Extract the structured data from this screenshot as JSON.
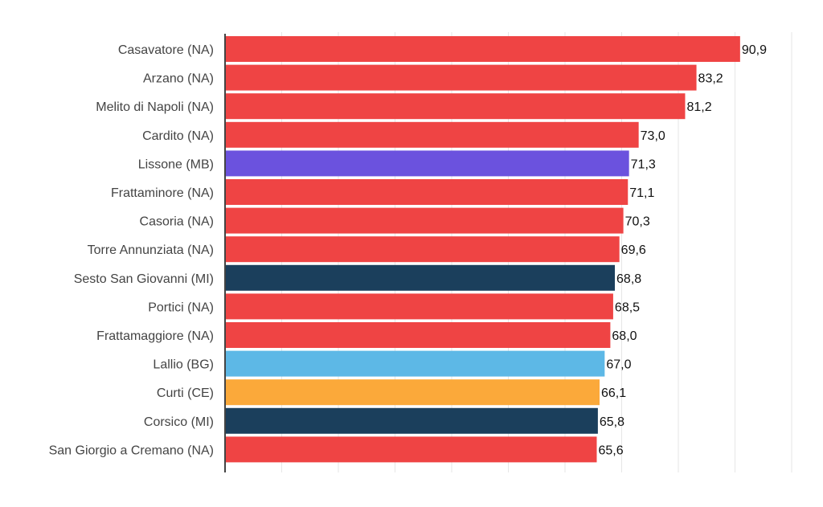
{
  "chart_data": {
    "type": "bar",
    "orientation": "horizontal",
    "categories": [
      "Casavatore (NA)",
      "Arzano (NA)",
      "Melito di Napoli (NA)",
      "Cardito (NA)",
      "Lissone (MB)",
      "Frattaminore (NA)",
      "Casoria (NA)",
      "Torre Annunziata (NA)",
      "Sesto San Giovanni (MI)",
      "Portici (NA)",
      "Frattamaggiore (NA)",
      "Lallio (BG)",
      "Curti (CE)",
      "Corsico (MI)",
      "San Giorgio a Cremano (NA)"
    ],
    "values": [
      90.9,
      83.2,
      81.2,
      73.0,
      71.3,
      71.1,
      70.3,
      69.6,
      68.8,
      68.5,
      68.0,
      67.0,
      66.1,
      65.8,
      65.6
    ],
    "value_labels": [
      "90,9",
      "83,2",
      "81,2",
      "73,0",
      "71,3",
      "71,1",
      "70,3",
      "69,6",
      "68,8",
      "68,5",
      "68,0",
      "67,0",
      "66,1",
      "65,8",
      "65,6"
    ],
    "bar_colors": [
      "#ef4444",
      "#ef4444",
      "#ef4444",
      "#ef4444",
      "#6b52de",
      "#ef4444",
      "#ef4444",
      "#ef4444",
      "#1b3f5c",
      "#ef4444",
      "#ef4444",
      "#5db8e6",
      "#fba93a",
      "#1b3f5c",
      "#ef4444"
    ],
    "xlim": [
      0,
      100
    ],
    "grid": true,
    "grid_step": 10,
    "title": "",
    "xlabel": "",
    "ylabel": ""
  }
}
